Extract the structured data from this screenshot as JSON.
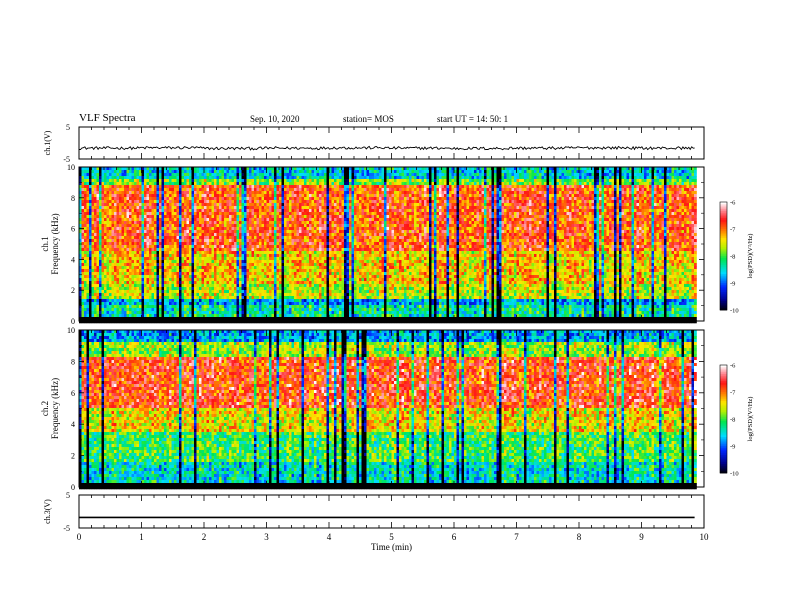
{
  "header": {
    "title": "VLF Spectra",
    "date": "Sep. 10, 2020",
    "station": "station= MOS",
    "start": "start  UT  =   14: 50: 1"
  },
  "chart_data": [
    {
      "type": "line",
      "panel": "ch1-waveform",
      "ylabel": "ch.1(V)",
      "yticks": [
        "5",
        "-5"
      ],
      "ylim": [
        -5,
        5
      ],
      "series": [
        {
          "values": [
            -1.6,
            -1.5,
            -1.7,
            -1.6,
            -1.5,
            -1.6,
            -1.7,
            -1.6,
            -1.5,
            -1.6
          ]
        }
      ]
    },
    {
      "type": "heatmap",
      "panel": "ch1-spectrogram",
      "ylabel": "ch.1\nFrequency  (kHz)",
      "ylim": [
        0,
        10
      ],
      "yticks": [
        "0",
        "2",
        "4",
        "6",
        "8",
        "10"
      ],
      "bands_khz": [
        {
          "from": 0,
          "to": 0.3,
          "level": -10
        },
        {
          "from": 0.3,
          "to": 1.0,
          "level": -8.3
        },
        {
          "from": 1.0,
          "to": 1.5,
          "level": -8.7
        },
        {
          "from": 1.5,
          "to": 2.5,
          "level": -7.6
        },
        {
          "from": 2.5,
          "to": 4.5,
          "level": -7.3
        },
        {
          "from": 4.5,
          "to": 8.8,
          "level": -6.8
        },
        {
          "from": 8.8,
          "to": 9.3,
          "level": -7.8
        },
        {
          "from": 9.3,
          "to": 10,
          "level": -8.5
        }
      ],
      "colorbar": {
        "label": "log(PSD)(V²/Hz)",
        "ticks": [
          "-6",
          "-7",
          "-8",
          "-9",
          "-10"
        ],
        "range": [
          -10,
          -6
        ]
      }
    },
    {
      "type": "heatmap",
      "panel": "ch2-spectrogram",
      "ylabel": "ch.2\nFrequency  (kHz)",
      "ylim": [
        0,
        10
      ],
      "yticks": [
        "0",
        "2",
        "4",
        "6",
        "8",
        "10"
      ],
      "bands_khz": [
        {
          "from": 0,
          "to": 0.3,
          "level": -10
        },
        {
          "from": 0.3,
          "to": 1.5,
          "level": -8.4
        },
        {
          "from": 1.5,
          "to": 3.5,
          "level": -8.0
        },
        {
          "from": 3.5,
          "to": 5.0,
          "level": -7.4
        },
        {
          "from": 5.0,
          "to": 8.2,
          "level": -6.7
        },
        {
          "from": 8.2,
          "to": 9.2,
          "level": -7.7
        },
        {
          "from": 9.2,
          "to": 10,
          "level": -8.7
        }
      ],
      "colorbar": {
        "label": "log(PSD)(V²/Hz)",
        "ticks": [
          "-6",
          "-7",
          "-8",
          "-9",
          "-10"
        ],
        "range": [
          -10,
          -6
        ]
      }
    },
    {
      "type": "line",
      "panel": "ch3-waveform",
      "ylabel": "ch.3(V)",
      "yticks": [
        "5",
        "-5"
      ],
      "ylim": [
        -5,
        5
      ],
      "series": [
        {
          "values": [
            -1.8,
            -1.8,
            -1.8,
            -1.8,
            -1.8,
            -1.8,
            -1.8,
            -1.8,
            -1.8,
            -1.8
          ]
        }
      ]
    }
  ],
  "x_axis": {
    "label": "Time  (min)",
    "ticks": [
      "0",
      "1",
      "2",
      "3",
      "4",
      "5",
      "6",
      "7",
      "8",
      "9",
      "10"
    ],
    "xlim": [
      0,
      10
    ],
    "data_end_min": 9.85
  },
  "colors": {
    "axis": "#000000",
    "trace": "#000000",
    "background": "#ffffff"
  }
}
